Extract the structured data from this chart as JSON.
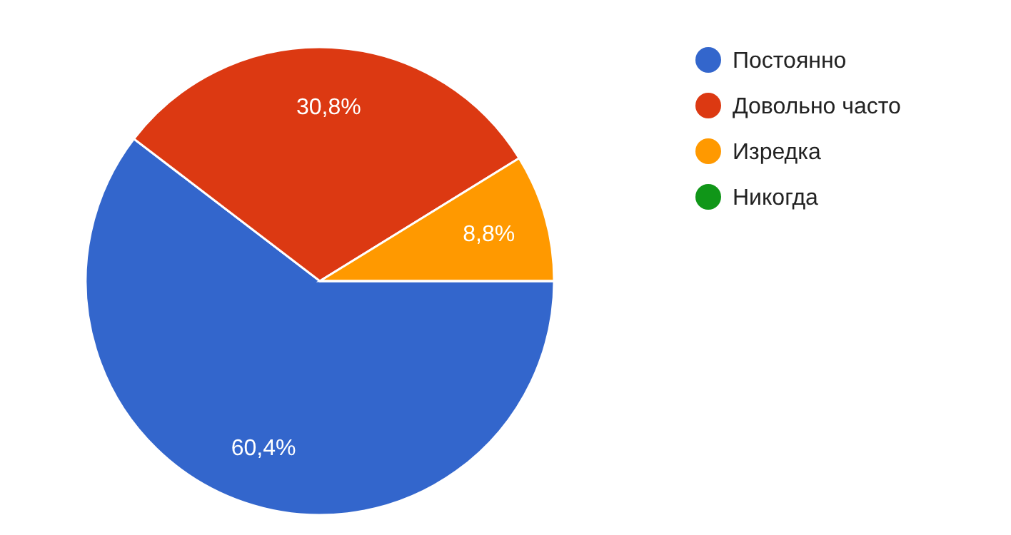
{
  "chart_data": {
    "type": "pie",
    "categories": [
      "Постоянно",
      "Довольно часто",
      "Изредка",
      "Никогда"
    ],
    "values": [
      60.4,
      30.8,
      8.8,
      0
    ],
    "colors": [
      "#3366cc",
      "#dc3912",
      "#ff9900",
      "#109618"
    ],
    "value_labels": [
      "60,4%",
      "30,8%",
      "8,8%",
      null
    ],
    "legend": "top right"
  }
}
